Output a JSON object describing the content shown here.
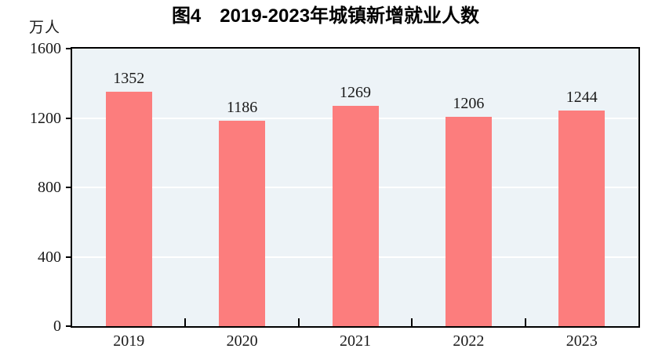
{
  "chart_data": {
    "type": "bar",
    "title": "图4　2019-2023年城镇新增就业人数",
    "unit_label": "万人",
    "categories": [
      "2019",
      "2020",
      "2021",
      "2022",
      "2023"
    ],
    "values": [
      1352,
      1186,
      1269,
      1206,
      1244
    ],
    "value_labels": [
      "1352",
      "1186",
      "1269",
      "1206",
      "1244"
    ],
    "ylim": [
      0,
      1600
    ],
    "yticks": [
      0,
      400,
      800,
      1200,
      1600
    ],
    "ytick_labels": [
      "0",
      "400",
      "800",
      "1200",
      "1600"
    ],
    "gridline_values": [
      400,
      800,
      1200
    ],
    "legend": "none",
    "grid": "horizontal-white-lines",
    "bar_color": "#FC7D7D",
    "plot_bg_color": "#EDF3F7",
    "gridline_color": "#FFFFFF",
    "axis_color": "#000000",
    "text_color": "#1A1A1A"
  }
}
